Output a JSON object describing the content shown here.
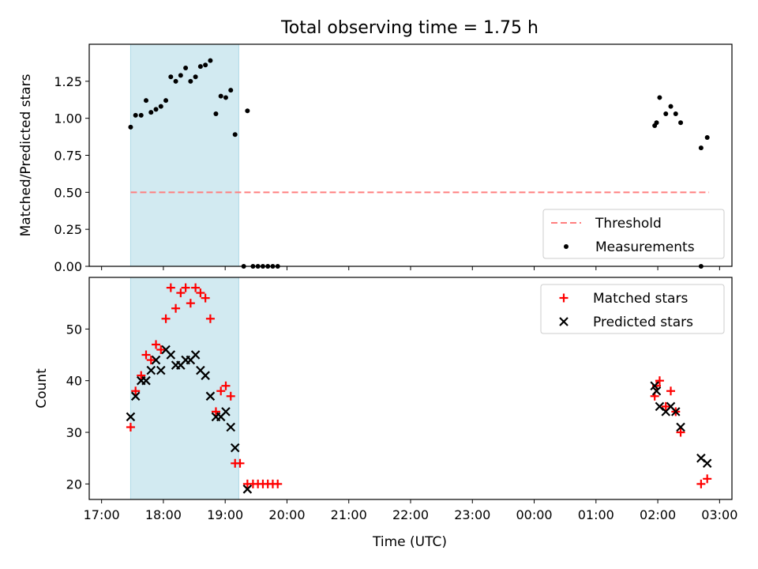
{
  "figure": {
    "title": "Total observing time = 1.75 h",
    "xlabel": "Time (UTC)"
  },
  "chart_data": [
    {
      "type": "scatter",
      "ylabel": "Matched/Predicted stars",
      "xlim": [
        -0.2,
        10.2
      ],
      "ylim": [
        0,
        1.5
      ],
      "xticks": [
        "17:00",
        "18:00",
        "19:00",
        "20:00",
        "21:00",
        "22:00",
        "23:00",
        "00:00",
        "01:00",
        "02:00",
        "03:00"
      ],
      "yticks": [
        {
          "v": 0.0,
          "label": "0.00"
        },
        {
          "v": 0.25,
          "label": "0.25"
        },
        {
          "v": 0.5,
          "label": "0.50"
        },
        {
          "v": 0.75,
          "label": "0.75"
        },
        {
          "v": 1.0,
          "label": "1.00"
        },
        {
          "v": 1.25,
          "label": "1.25"
        }
      ],
      "shaded_span": {
        "x0": 0.47,
        "x1": 2.22,
        "color": "#add8e6"
      },
      "threshold": {
        "name": "Threshold",
        "value": 0.5,
        "x0": 0.47,
        "x1": 9.83,
        "color": "#ff7f7f"
      },
      "series": [
        {
          "name": "Measurements",
          "color": "#000000",
          "marker": "dot",
          "points": [
            [
              0.47,
              0.94
            ],
            [
              0.55,
              1.02
            ],
            [
              0.64,
              1.02
            ],
            [
              0.72,
              1.12
            ],
            [
              0.8,
              1.04
            ],
            [
              0.88,
              1.06
            ],
            [
              0.96,
              1.08
            ],
            [
              1.04,
              1.12
            ],
            [
              1.12,
              1.28
            ],
            [
              1.2,
              1.25
            ],
            [
              1.28,
              1.29
            ],
            [
              1.36,
              1.34
            ],
            [
              1.44,
              1.25
            ],
            [
              1.52,
              1.28
            ],
            [
              1.6,
              1.35
            ],
            [
              1.68,
              1.36
            ],
            [
              1.76,
              1.39
            ],
            [
              1.85,
              1.03
            ],
            [
              1.93,
              1.15
            ],
            [
              2.01,
              1.14
            ],
            [
              2.09,
              1.19
            ],
            [
              2.16,
              0.89
            ],
            [
              2.3,
              0.0
            ],
            [
              2.36,
              1.05
            ],
            [
              2.45,
              0.0
            ],
            [
              2.53,
              0.0
            ],
            [
              2.61,
              0.0
            ],
            [
              2.69,
              0.0
            ],
            [
              2.77,
              0.0
            ],
            [
              2.85,
              0.0
            ],
            [
              8.95,
              0.95
            ],
            [
              8.98,
              0.97
            ],
            [
              9.03,
              1.14
            ],
            [
              9.13,
              1.03
            ],
            [
              9.21,
              1.08
            ],
            [
              9.29,
              1.03
            ],
            [
              9.37,
              0.97
            ],
            [
              9.7,
              0.8
            ],
            [
              9.7,
              0.0
            ],
            [
              9.8,
              0.87
            ]
          ]
        }
      ],
      "legend": {
        "position": "lower right"
      }
    },
    {
      "type": "scatter",
      "ylabel": "Count",
      "xlim": [
        -0.2,
        10.2
      ],
      "ylim": [
        17,
        60
      ],
      "xticks": [
        "17:00",
        "18:00",
        "19:00",
        "20:00",
        "21:00",
        "22:00",
        "23:00",
        "00:00",
        "01:00",
        "02:00",
        "03:00"
      ],
      "yticks": [
        {
          "v": 20,
          "label": "20"
        },
        {
          "v": 30,
          "label": "30"
        },
        {
          "v": 40,
          "label": "40"
        },
        {
          "v": 50,
          "label": "50"
        }
      ],
      "shaded_span": {
        "x0": 0.47,
        "x1": 2.22,
        "color": "#add8e6"
      },
      "series": [
        {
          "name": "Matched stars",
          "color": "#ff0000",
          "marker": "plus",
          "points": [
            [
              0.47,
              31
            ],
            [
              0.55,
              38
            ],
            [
              0.64,
              41
            ],
            [
              0.72,
              45
            ],
            [
              0.8,
              44
            ],
            [
              0.88,
              47
            ],
            [
              0.96,
              46
            ],
            [
              1.04,
              52
            ],
            [
              1.12,
              58
            ],
            [
              1.2,
              54
            ],
            [
              1.28,
              57
            ],
            [
              1.36,
              58
            ],
            [
              1.44,
              55
            ],
            [
              1.52,
              58
            ],
            [
              1.6,
              57
            ],
            [
              1.68,
              56
            ],
            [
              1.76,
              52
            ],
            [
              1.85,
              34
            ],
            [
              1.93,
              38
            ],
            [
              2.01,
              39
            ],
            [
              2.09,
              37
            ],
            [
              2.16,
              24
            ],
            [
              2.24,
              24
            ],
            [
              2.36,
              20
            ],
            [
              2.45,
              20
            ],
            [
              2.53,
              20
            ],
            [
              2.61,
              20
            ],
            [
              2.69,
              20
            ],
            [
              2.77,
              20
            ],
            [
              2.85,
              20
            ],
            [
              8.95,
              37
            ],
            [
              8.98,
              39
            ],
            [
              9.03,
              40
            ],
            [
              9.13,
              35
            ],
            [
              9.21,
              38
            ],
            [
              9.29,
              34
            ],
            [
              9.37,
              30
            ],
            [
              9.7,
              20
            ],
            [
              9.8,
              21
            ]
          ]
        },
        {
          "name": "Predicted stars",
          "color": "#000000",
          "marker": "x",
          "points": [
            [
              0.47,
              33
            ],
            [
              0.55,
              37
            ],
            [
              0.64,
              40
            ],
            [
              0.72,
              40
            ],
            [
              0.8,
              42
            ],
            [
              0.88,
              44
            ],
            [
              0.96,
              42
            ],
            [
              1.04,
              46
            ],
            [
              1.12,
              45
            ],
            [
              1.2,
              43
            ],
            [
              1.28,
              43
            ],
            [
              1.36,
              44
            ],
            [
              1.44,
              44
            ],
            [
              1.52,
              45
            ],
            [
              1.6,
              42
            ],
            [
              1.68,
              41
            ],
            [
              1.76,
              37
            ],
            [
              1.85,
              33
            ],
            [
              1.93,
              33
            ],
            [
              2.01,
              34
            ],
            [
              2.09,
              31
            ],
            [
              2.16,
              27
            ],
            [
              2.36,
              19
            ],
            [
              8.95,
              39
            ],
            [
              8.98,
              38
            ],
            [
              9.03,
              35
            ],
            [
              9.13,
              34
            ],
            [
              9.21,
              35
            ],
            [
              9.29,
              34
            ],
            [
              9.37,
              31
            ],
            [
              9.7,
              25
            ],
            [
              9.8,
              24
            ]
          ]
        }
      ],
      "legend": {
        "position": "upper right"
      }
    }
  ]
}
